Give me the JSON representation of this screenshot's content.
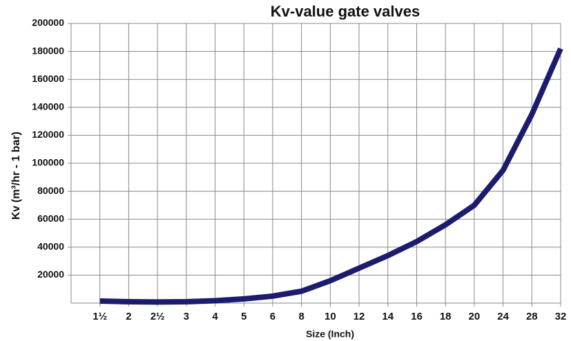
{
  "chart_data": {
    "type": "line",
    "title": "Kv-value  gate valves",
    "x_label": "Size (Inch)",
    "y_label": "Kv (m³/hr - 1 bar)",
    "categories": [
      "1½",
      "2",
      "2½",
      "3",
      "4",
      "5",
      "6",
      "8",
      "10",
      "12",
      "14",
      "16",
      "18",
      "20",
      "24",
      "28",
      "32"
    ],
    "series": [
      {
        "name": "Kv",
        "color": "#1c1c6e",
        "values": [
          1500,
          1000,
          800,
          1000,
          1700,
          3000,
          5000,
          8500,
          16000,
          25000,
          34000,
          44000,
          56000,
          70000,
          95000,
          135000,
          182000
        ]
      }
    ],
    "ylim": [
      0,
      200000
    ],
    "yticks": [
      20000,
      40000,
      60000,
      80000,
      100000,
      120000,
      140000,
      160000,
      180000,
      200000
    ],
    "grid": true
  }
}
